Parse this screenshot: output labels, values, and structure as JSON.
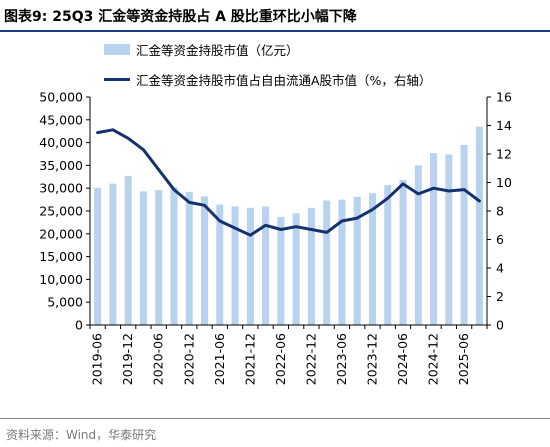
{
  "header": {
    "title": "图表9:  25Q3 汇金等资金持股占 A 股比重环比小幅下降"
  },
  "legend": {
    "bar_label": "汇金等资金持股市值（亿元）",
    "line_label": "汇金等资金持股市值占自由流通A股市值（%，右轴）"
  },
  "footer": {
    "source": "资料来源：Wind，华泰研究"
  },
  "colors": {
    "bar": "#b9d3ee",
    "line": "#14336e",
    "title_rule": "#1a3a8a"
  },
  "chart_data": {
    "type": "bar+line",
    "categories": [
      "2019-06",
      "2019-09",
      "2019-12",
      "2020-03",
      "2020-06",
      "2020-09",
      "2020-12",
      "2021-03",
      "2021-06",
      "2021-09",
      "2021-12",
      "2022-03",
      "2022-06",
      "2022-09",
      "2022-12",
      "2023-03",
      "2023-06",
      "2023-09",
      "2023-12",
      "2024-03",
      "2024-06",
      "2024-09",
      "2024-12",
      "2025-03",
      "2025-06",
      "2025-09"
    ],
    "x_tick_labels": [
      "2019-06",
      "2019-12",
      "2020-06",
      "2020-12",
      "2021-06",
      "2021-12",
      "2022-06",
      "2022-12",
      "2023-06",
      "2023-12",
      "2024-06",
      "2024-12",
      "2025-06"
    ],
    "series": [
      {
        "name": "汇金等资金持股市值（亿元）",
        "type": "bar",
        "axis": "left",
        "values": [
          30100,
          31000,
          32700,
          29300,
          29600,
          30200,
          29200,
          28200,
          26400,
          26000,
          25700,
          26000,
          23700,
          24500,
          25700,
          27300,
          27500,
          28100,
          28900,
          30700,
          31800,
          35000,
          37700,
          37400,
          39500,
          43500
        ]
      },
      {
        "name": "汇金等资金持股市值占自由流通A股市值（%，右轴）",
        "type": "line",
        "axis": "right",
        "values": [
          13.5,
          13.7,
          13.1,
          12.3,
          10.9,
          9.5,
          8.6,
          8.4,
          7.3,
          6.8,
          6.3,
          7.0,
          6.7,
          6.9,
          6.7,
          6.5,
          7.3,
          7.5,
          8.1,
          8.9,
          9.9,
          9.2,
          9.6,
          9.4,
          9.5,
          8.7
        ]
      }
    ],
    "yleft_ticks": [
      "0",
      "5,000",
      "10,000",
      "15,000",
      "20,000",
      "25,000",
      "30,000",
      "35,000",
      "40,000",
      "45,000",
      "50,000"
    ],
    "yleft_lim": [
      0,
      50000
    ],
    "yright_ticks": [
      "0",
      "2",
      "4",
      "6",
      "8",
      "10",
      "12",
      "14",
      "16"
    ],
    "yright_lim": [
      0,
      16
    ],
    "grid": false,
    "legend_position": "top"
  }
}
